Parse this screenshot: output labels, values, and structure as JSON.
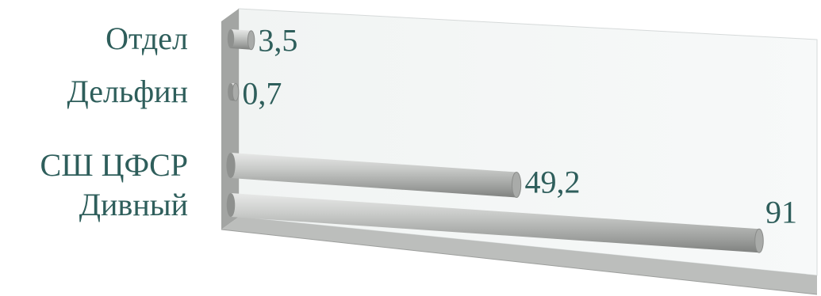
{
  "chart_data": {
    "type": "bar",
    "orientation": "horizontal",
    "style": "3d-cylinder",
    "categories": [
      "Отдел",
      "Дельфин",
      "СШ ЦФСР",
      "Дивный"
    ],
    "values": [
      3.5,
      0.7,
      49.2,
      91
    ],
    "value_labels": [
      "3,5",
      "0,7",
      "49,2",
      "91"
    ],
    "xlim": [
      0,
      91
    ],
    "grid": false,
    "legend": "none",
    "colors": {
      "bar": "#b4b6b4",
      "label": "#2e5e5b",
      "back_wall": "#eef2f1",
      "side_wall": "#9ea09e",
      "floor": "#b9bbb9"
    }
  }
}
